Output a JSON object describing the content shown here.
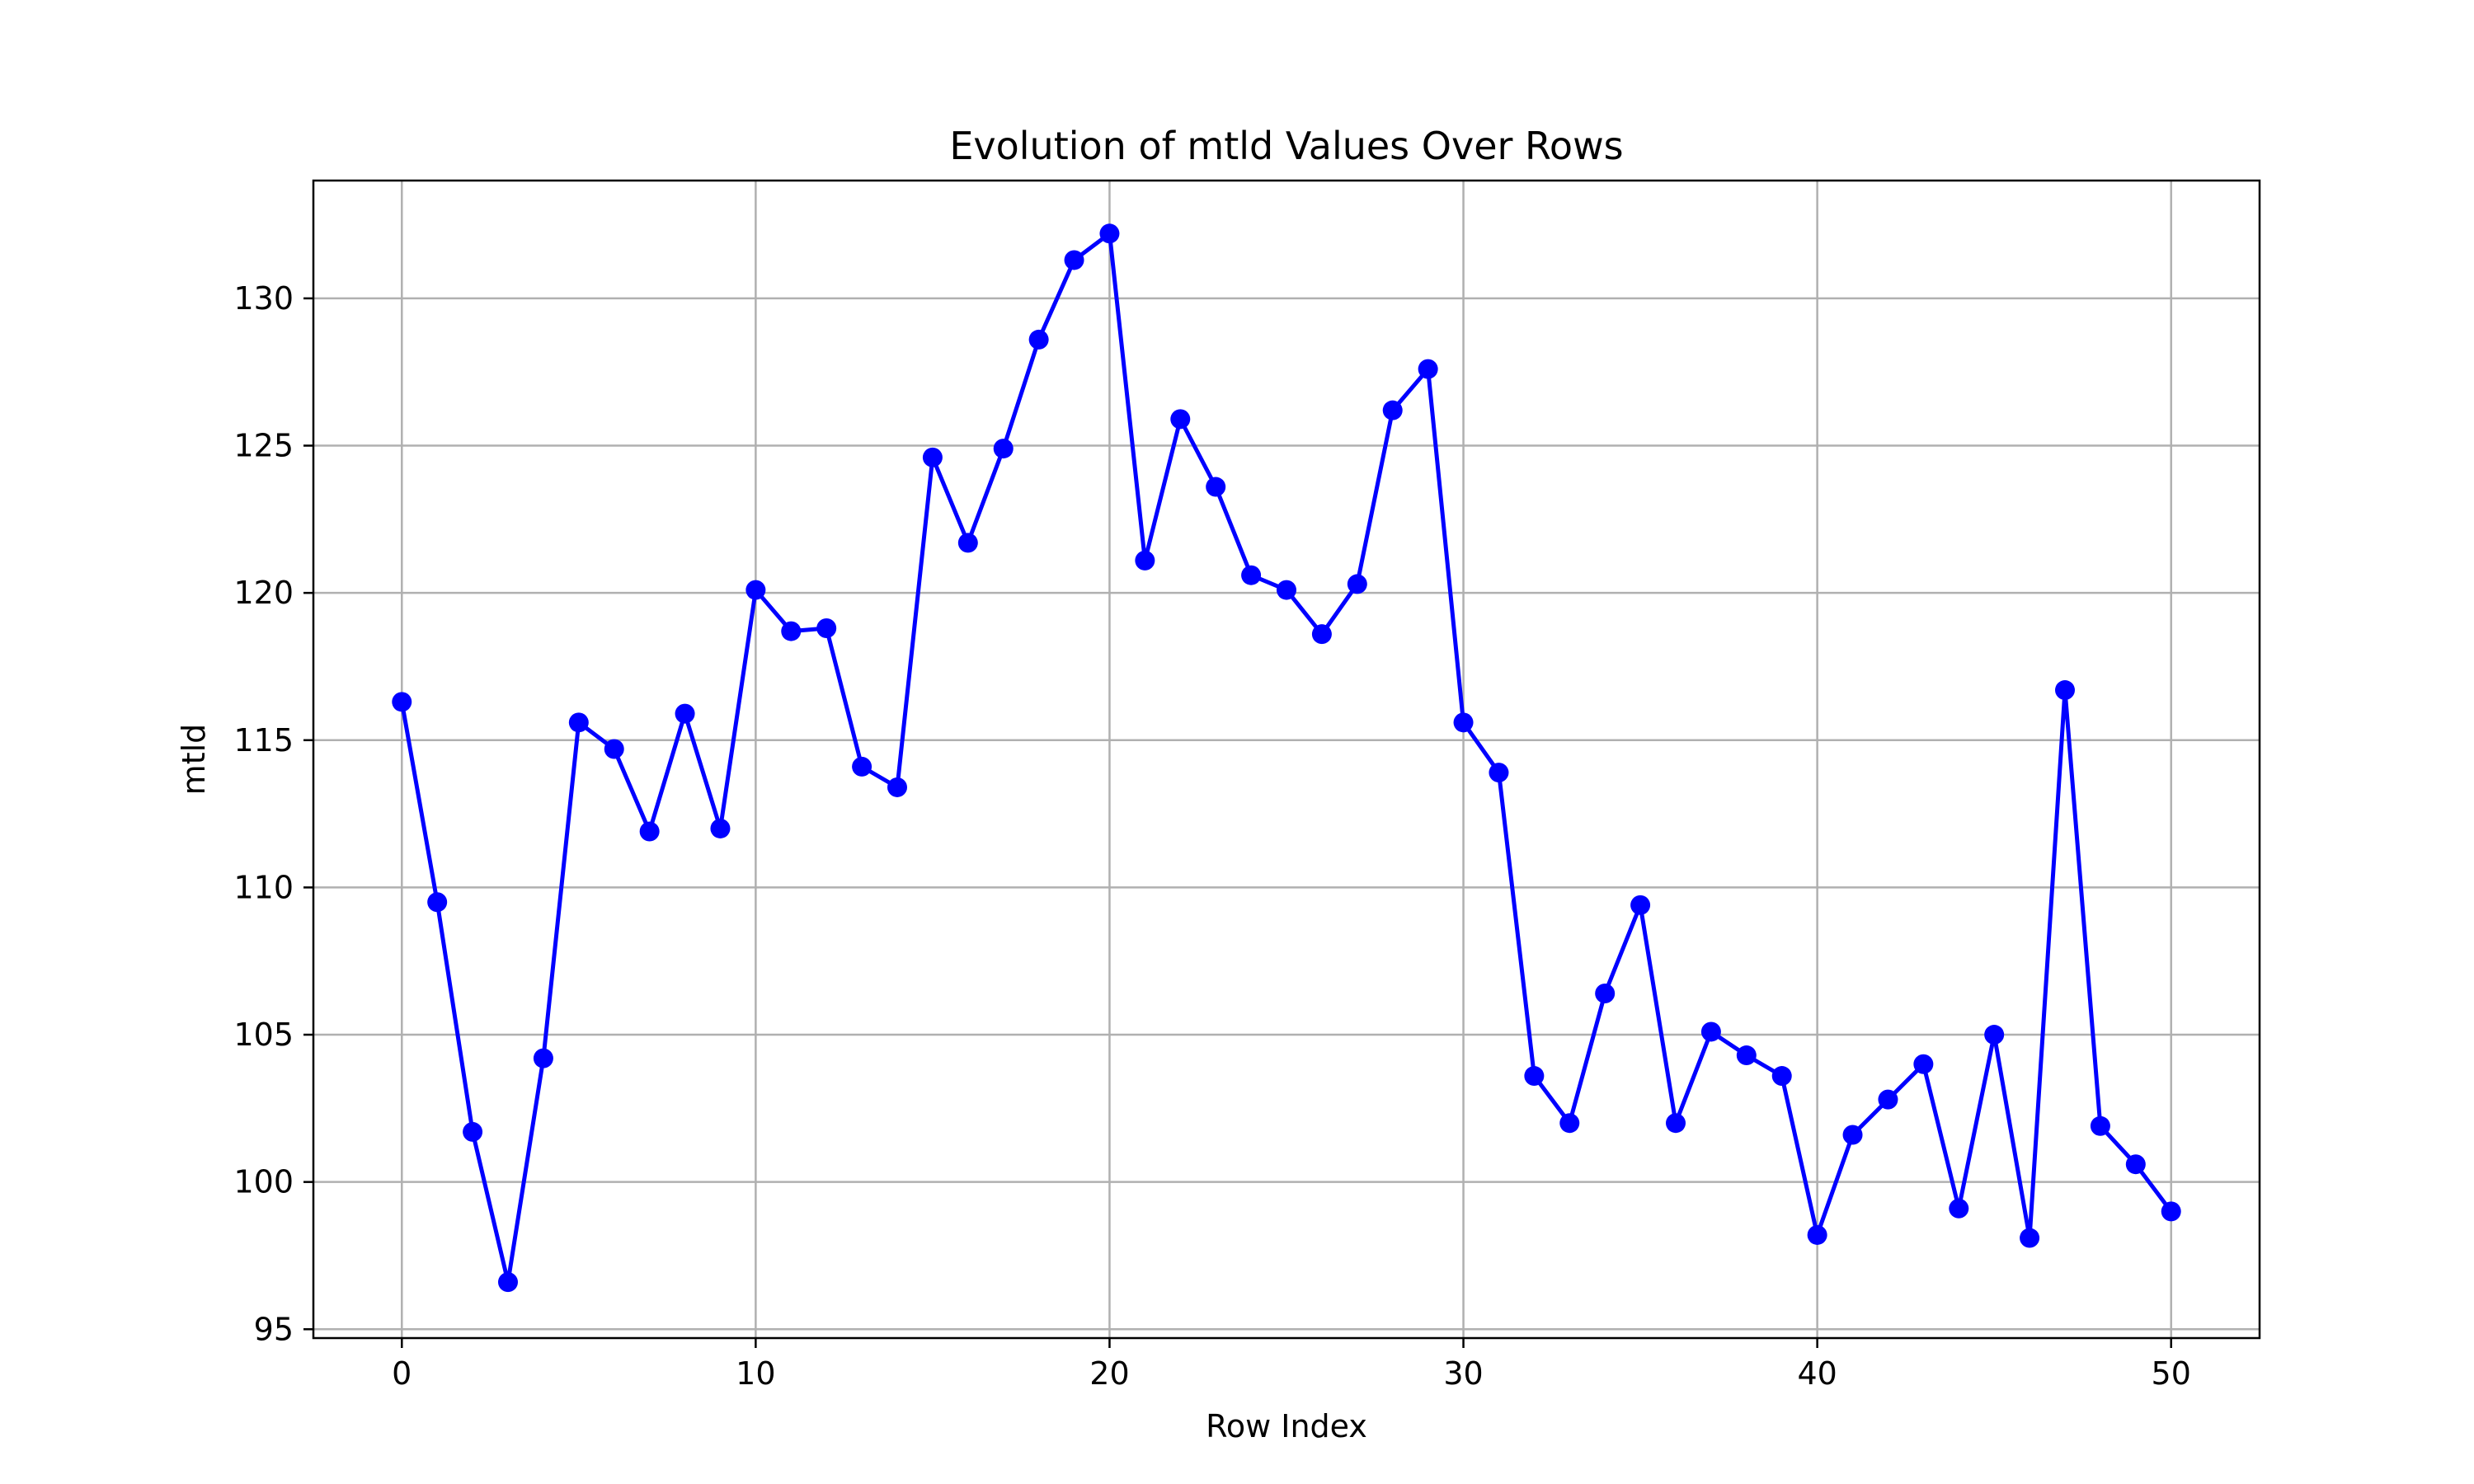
{
  "chart_data": {
    "type": "line",
    "title": "Evolution of mtld Values Over Rows",
    "xlabel": "Row Index",
    "ylabel": "mtld",
    "xlim": [
      -2.5,
      52.5
    ],
    "ylim": [
      94.7,
      134.0
    ],
    "xticks": [
      0,
      10,
      20,
      30,
      40,
      50
    ],
    "yticks": [
      95,
      100,
      105,
      110,
      115,
      120,
      125,
      130
    ],
    "grid": true,
    "line_color": "#0000ff",
    "marker": "circle",
    "series": [
      {
        "x": [
          0,
          1,
          2,
          3,
          4,
          5,
          6,
          7,
          8,
          9,
          10,
          11,
          12,
          13,
          14,
          15,
          16,
          17,
          18,
          19,
          20,
          21,
          22,
          23,
          24,
          25,
          26,
          27,
          28,
          29,
          30,
          31,
          32,
          33,
          34,
          35,
          36,
          37,
          38,
          39,
          40,
          41,
          42,
          43,
          44,
          45,
          46,
          47,
          48,
          49,
          50
        ],
        "values": [
          116.3,
          109.5,
          101.7,
          96.6,
          104.2,
          115.6,
          114.7,
          111.9,
          115.9,
          112.0,
          120.1,
          118.7,
          118.8,
          114.1,
          113.4,
          124.6,
          121.7,
          124.9,
          128.6,
          131.3,
          132.2,
          121.1,
          125.9,
          123.6,
          120.6,
          120.1,
          118.6,
          120.3,
          126.2,
          127.6,
          115.6,
          113.9,
          103.6,
          102.0,
          106.4,
          109.4,
          102.0,
          105.1,
          104.3,
          103.6,
          98.2,
          101.6,
          102.8,
          104.0,
          99.1,
          105.0,
          98.1,
          116.7,
          101.9,
          100.6,
          99.0
        ]
      }
    ]
  }
}
